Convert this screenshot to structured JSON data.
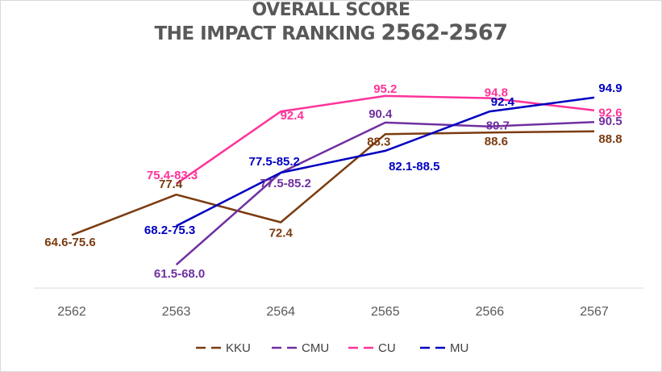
{
  "chart_data": {
    "type": "line",
    "title_line1": "OVERALL SCORE",
    "title_line2_prefix": "THE IMPACT RANKING",
    "title_line2_years": "2562-2567",
    "categories": [
      "2562",
      "2563",
      "2564",
      "2565",
      "2566",
      "2567"
    ],
    "legend_position": "bottom",
    "grid": false,
    "series": [
      {
        "name": "KKU",
        "color": "#7b3b10",
        "values": [
          70.1,
          77.4,
          72.4,
          88.3,
          88.6,
          88.8
        ],
        "labels": [
          "64.6-75.6",
          "77.4",
          "72.4",
          "88.3",
          "88.6",
          "88.8"
        ]
      },
      {
        "name": "CMU",
        "color": "#7030a0",
        "values": [
          null,
          64.75,
          81.35,
          90.4,
          89.7,
          90.5
        ],
        "labels": [
          null,
          "61.5-68.0",
          "77.5-85.2",
          "90.4",
          "89.7",
          "90.5"
        ]
      },
      {
        "name": "CU",
        "color": "#ff3399",
        "values": [
          null,
          79.35,
          92.4,
          95.2,
          94.8,
          92.6
        ],
        "labels": [
          null,
          "75.4-83.3",
          "92.4",
          "95.2",
          "94.8",
          "92.6"
        ]
      },
      {
        "name": "MU",
        "color": "#0000c0",
        "values": [
          null,
          71.75,
          81.35,
          85.3,
          92.4,
          94.9
        ],
        "labels": [
          null,
          "68.2-75.3",
          "77.5-85.2",
          "82.1-88.5",
          "92.4",
          "94.9"
        ]
      }
    ]
  }
}
